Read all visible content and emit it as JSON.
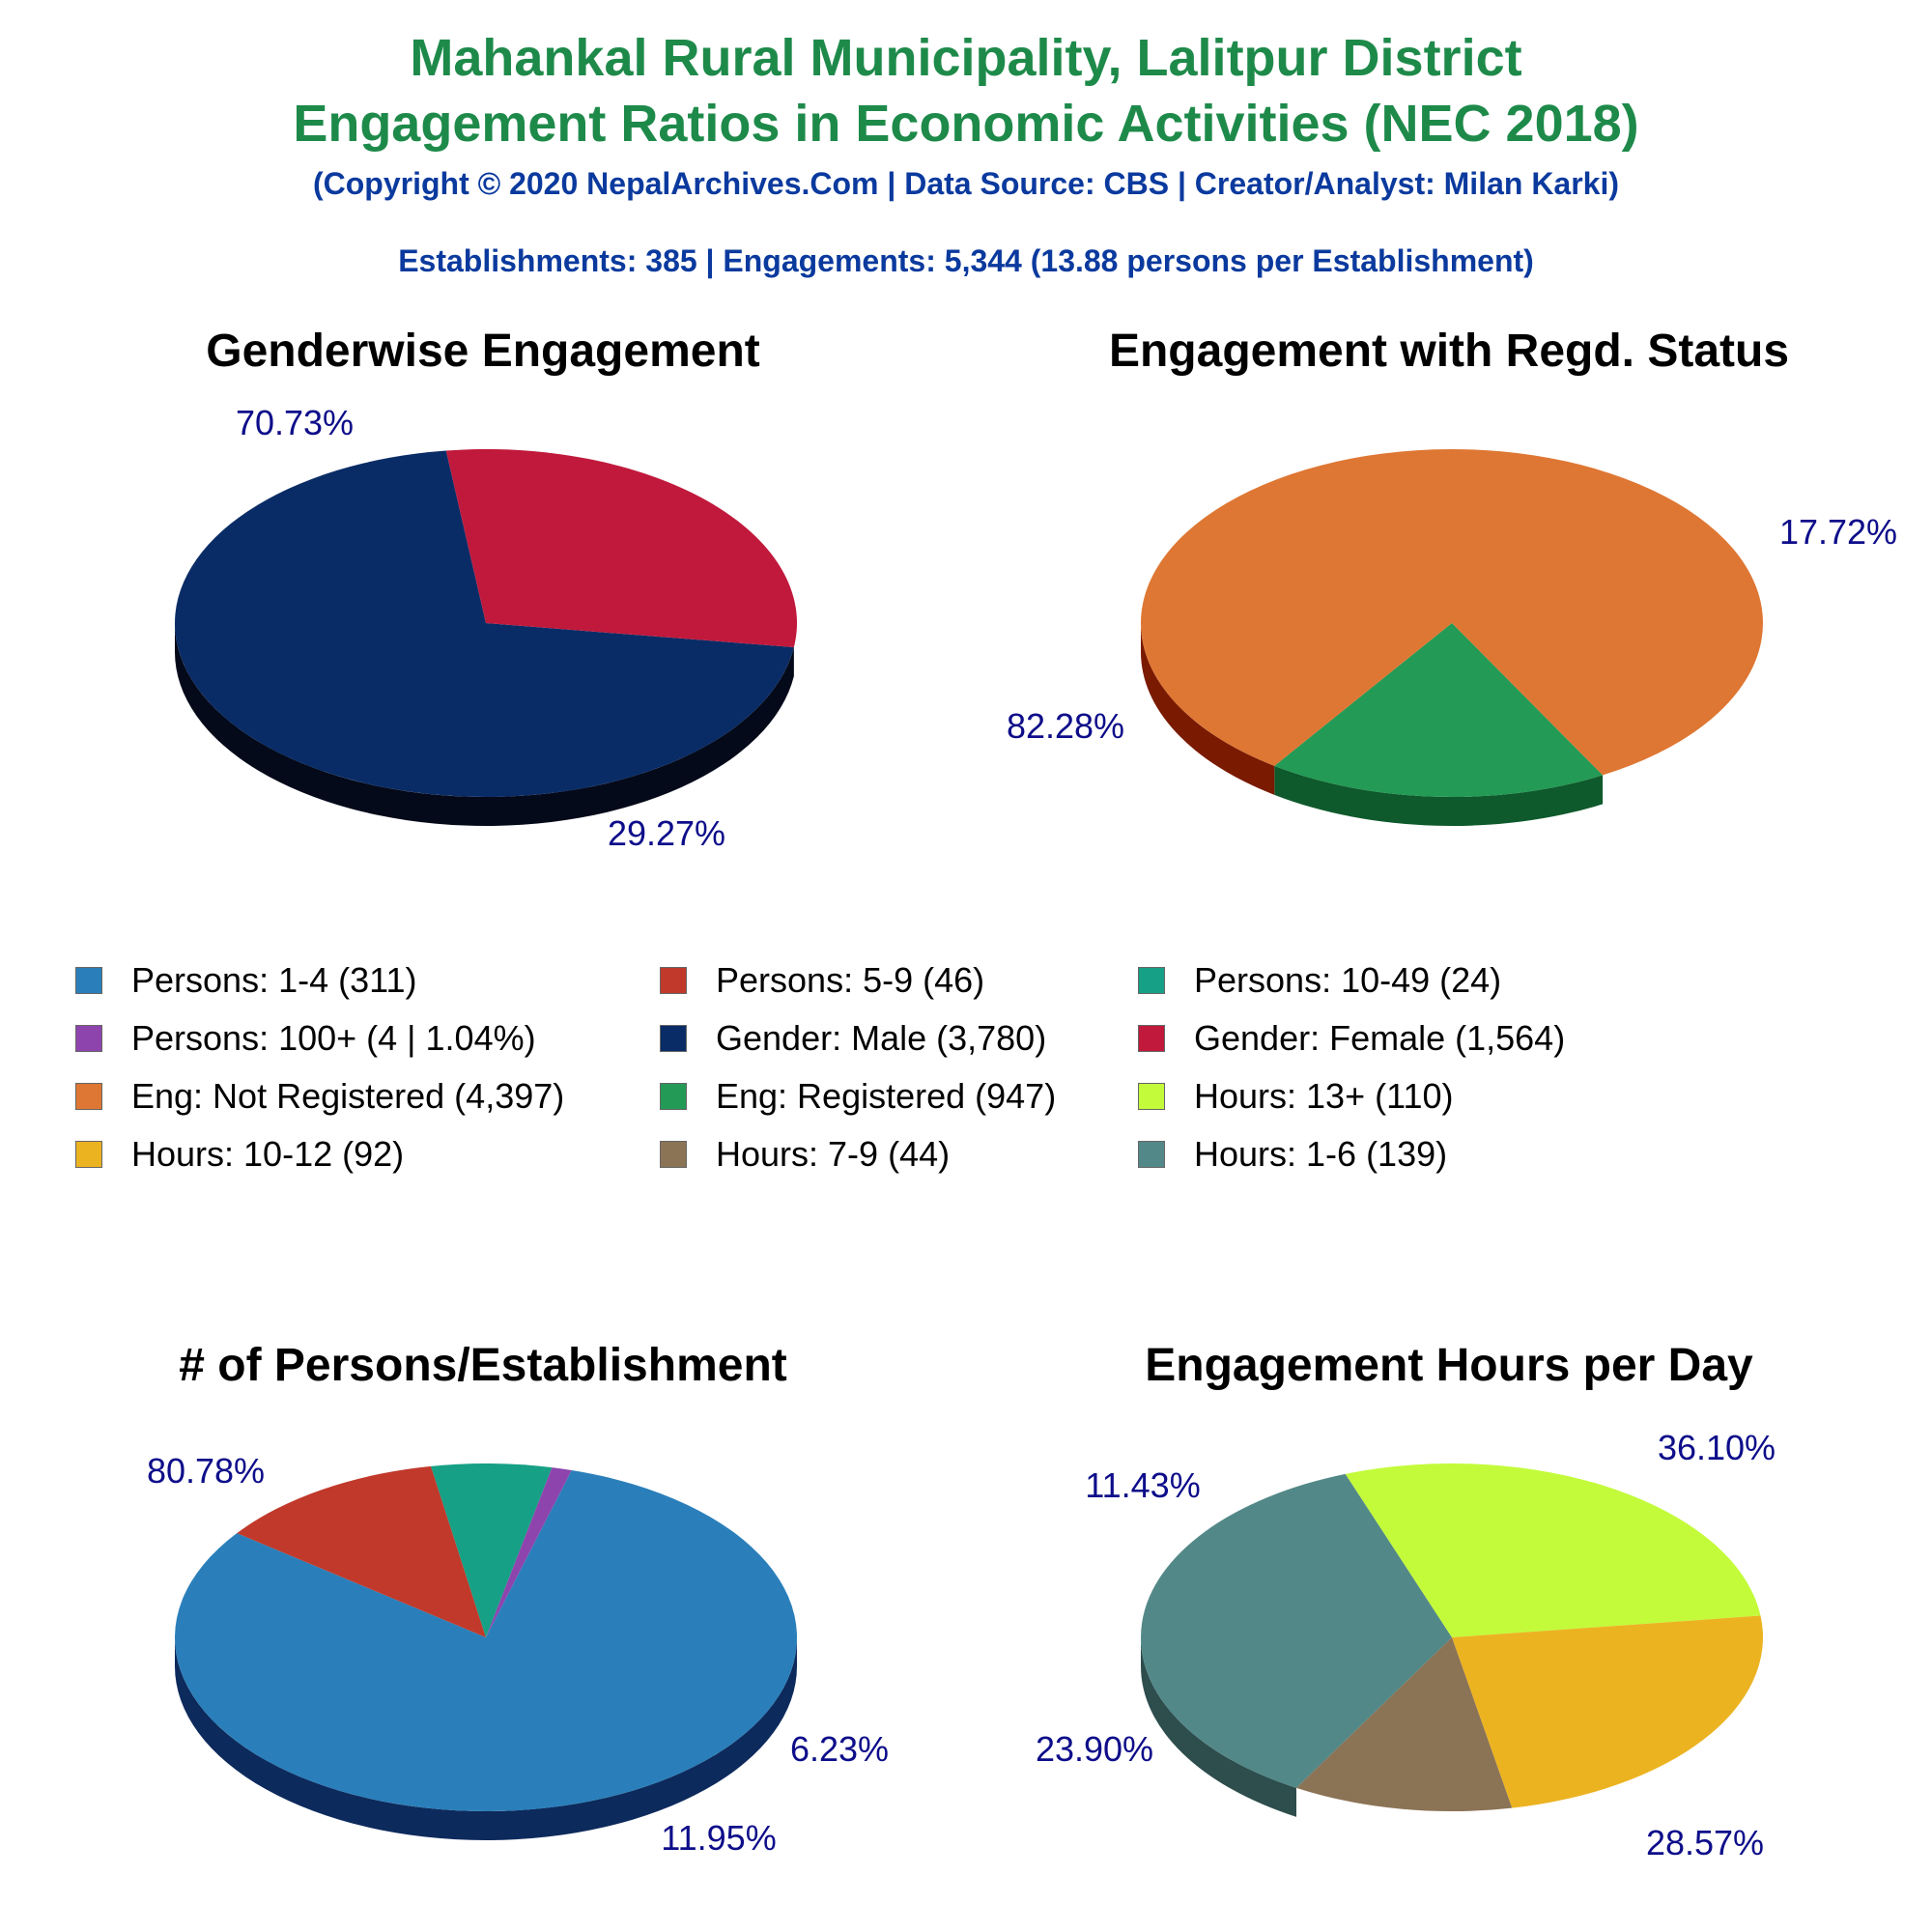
{
  "header": {
    "title_line1": "Mahankal Rural Municipality, Lalitpur District",
    "title_line2": "Engagement Ratios in Economic Activities (NEC 2018)",
    "copyright": "(Copyright © 2020 NepalArchives.Com | Data Source: CBS | Creator/Analyst: Milan Karki)",
    "summary": "Establishments: 385 | Engagements: 5,344 (13.88 persons per Establishment)"
  },
  "legend": [
    {
      "label": "Persons: 1-4 (311)",
      "color": "#2a7fba"
    },
    {
      "label": "Persons: 5-9 (46)",
      "color": "#c0392b"
    },
    {
      "label": "Persons: 10-49 (24)",
      "color": "#16a085"
    },
    {
      "label": "Persons: 100+ (4 | 1.04%)",
      "color": "#8e44ad"
    },
    {
      "label": "Gender: Male (3,780)",
      "color": "#0a2c66"
    },
    {
      "label": "Gender: Female (1,564)",
      "color": "#c0193c"
    },
    {
      "label": "Eng: Not Registered (4,397)",
      "color": "#de7733"
    },
    {
      "label": "Eng: Registered (947)",
      "color": "#239a55"
    },
    {
      "label": "Hours: 13+ (110)",
      "color": "#c3fb3b"
    },
    {
      "label": "Hours: 10-12 (92)",
      "color": "#ecb321"
    },
    {
      "label": "Hours: 7-9 (44)",
      "color": "#8b7355"
    },
    {
      "label": "Hours: 1-6 (139)",
      "color": "#538888"
    }
  ],
  "chart_data": [
    {
      "type": "pie",
      "title": "Genderwise Engagement",
      "slices": [
        {
          "label": "Gender: Male (3,780)",
          "value": 3780,
          "percent": "70.73%",
          "color": "#0a2c66",
          "side": "#050a1a"
        },
        {
          "label": "Gender: Female (1,564)",
          "value": 1564,
          "percent": "29.27%",
          "color": "#c0193c",
          "side": "#6b0000"
        }
      ]
    },
    {
      "type": "pie",
      "title": "Engagement with Regd. Status",
      "slices": [
        {
          "label": "Eng: Registered (947)",
          "value": 947,
          "percent": "17.72%",
          "color": "#239a55",
          "side": "#0e5a2c"
        },
        {
          "label": "Eng: Not Registered (4,397)",
          "value": 4397,
          "percent": "82.28%",
          "color": "#de7733",
          "side": "#7a1a00"
        }
      ]
    },
    {
      "type": "pie",
      "title": "# of Persons/Establishment",
      "slices": [
        {
          "label": "Persons: 1-4 (311)",
          "value": 311,
          "percent": "80.78%",
          "color": "#2a7fba",
          "side": "#0d2a5c"
        },
        {
          "label": "Persons: 5-9 (46)",
          "value": 46,
          "percent": "11.95%",
          "color": "#c0392b",
          "side": "#6b0000"
        },
        {
          "label": "Persons: 10-49 (24)",
          "value": 24,
          "percent": "6.23%",
          "color": "#16a085",
          "side": "#0b4a3a"
        },
        {
          "label": "Persons: 100+ (4 | 1.04%)",
          "value": 4,
          "percent": "",
          "color": "#8e44ad",
          "side": "#3c1c4d"
        }
      ]
    },
    {
      "type": "pie",
      "title": "Engagement Hours per Day",
      "slices": [
        {
          "label": "Hours: 1-6 (139)",
          "value": 139,
          "percent": "36.10%",
          "color": "#538888",
          "side": "#2e4d4d"
        },
        {
          "label": "Hours: 13+ (110)",
          "value": 110,
          "percent": "28.57%",
          "color": "#c3fb3b",
          "side": "#6aa800"
        },
        {
          "label": "Hours: 10-12 (92)",
          "value": 92,
          "percent": "23.90%",
          "color": "#ecb321",
          "side": "#995800"
        },
        {
          "label": "Hours: 7-9 (44)",
          "value": 44,
          "percent": "11.43%",
          "color": "#8b7355",
          "side": "#4d3d28"
        }
      ]
    }
  ]
}
